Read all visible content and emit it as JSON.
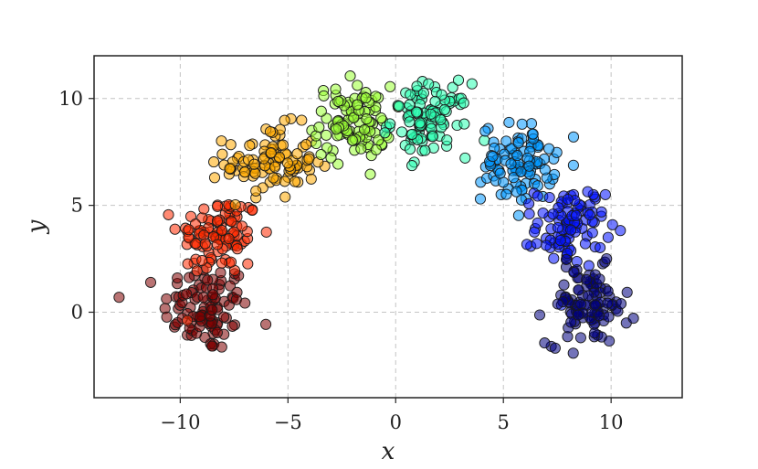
{
  "chart_data": {
    "type": "scatter",
    "title": "",
    "xlabel": "x",
    "ylabel": "y",
    "xlim": [
      -14,
      13.3
    ],
    "ylim": [
      -4,
      12
    ],
    "xticks": [
      -10,
      -5,
      0,
      5,
      10
    ],
    "xtick_labels": [
      "−10",
      "−5",
      "0",
      "5",
      "10"
    ],
    "yticks": [
      0,
      5,
      10
    ],
    "ytick_labels": [
      "0",
      "5",
      "10"
    ],
    "grid": true,
    "legend": "none",
    "point_count_per_cluster": 100,
    "clusters": [
      {
        "center": [
          -8.8,
          0.2
        ],
        "spread": [
          1.0,
          1.05
        ],
        "color": "#7f0000"
      },
      {
        "center": [
          -8.2,
          3.6
        ],
        "spread": [
          0.95,
          0.95
        ],
        "color": "#ff2a00"
      },
      {
        "center": [
          -5.8,
          7.0
        ],
        "spread": [
          1.05,
          0.85
        ],
        "color": "#ffaa00"
      },
      {
        "center": [
          -2.0,
          8.9
        ],
        "spread": [
          0.9,
          0.85
        ],
        "color": "#9bff34"
      },
      {
        "center": [
          1.6,
          9.0
        ],
        "spread": [
          0.9,
          0.85
        ],
        "color": "#2dffb2"
      },
      {
        "center": [
          5.7,
          7.0
        ],
        "spread": [
          0.85,
          0.9
        ],
        "color": "#0098ff"
      },
      {
        "center": [
          8.1,
          4.0
        ],
        "spread": [
          0.8,
          0.95
        ],
        "color": "#0010ff"
      },
      {
        "center": [
          8.9,
          0.3
        ],
        "spread": [
          0.95,
          0.9
        ],
        "color": "#00007f"
      }
    ]
  }
}
